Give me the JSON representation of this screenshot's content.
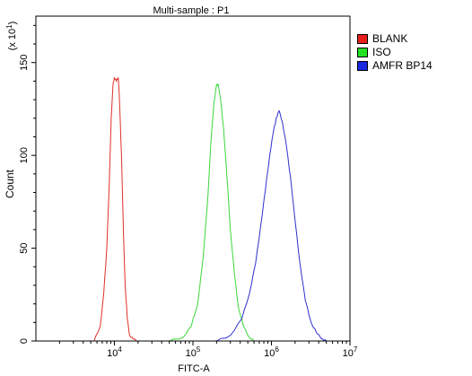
{
  "chart_data": {
    "type": "line",
    "title": "Multi-sample : P1",
    "xlabel": "FITC-A",
    "ylabel": "Count",
    "yscale_label": "(x 10",
    "yscale_exp": "1",
    "yscale_close": ")",
    "xscale": "log",
    "xlim": [
      1000,
      10000000
    ],
    "ylim": [
      0,
      175
    ],
    "x_ticks": [
      {
        "base": "10",
        "exp": "4",
        "value": 10000
      },
      {
        "base": "10",
        "exp": "5",
        "value": 100000
      },
      {
        "base": "10",
        "exp": "6",
        "value": 1000000
      },
      {
        "base": "10",
        "exp": "7",
        "value": 10000000
      }
    ],
    "y_ticks": [
      {
        "label": "0",
        "value": 0
      },
      {
        "label": "50",
        "value": 50
      },
      {
        "label": "100",
        "value": 100
      },
      {
        "label": "150",
        "value": 150
      }
    ],
    "legend_position": "outside-right-top",
    "series": [
      {
        "name": "BLANK",
        "color": "#e0302a",
        "legend_color": "#e8201c",
        "x": [
          5500,
          6600,
          7300,
          8000,
          8600,
          9100,
          9600,
          10000,
          10600,
          11200,
          11600,
          12300,
          13000,
          13700,
          14600,
          15600,
          17400,
          20000
        ],
        "y": [
          0,
          8,
          25,
          50,
          85,
          120,
          138,
          142,
          140,
          142,
          130,
          100,
          60,
          30,
          12,
          3,
          1,
          0
        ]
      },
      {
        "name": "ISO",
        "color": "#3ad83a",
        "legend_color": "#22e022",
        "x": [
          50000,
          75000,
          95000,
          115000,
          135000,
          155000,
          170000,
          185000,
          200000,
          210000,
          225000,
          245000,
          270000,
          300000,
          340000,
          380000,
          440000,
          520000,
          600000
        ],
        "y": [
          0,
          2,
          8,
          20,
          45,
          78,
          108,
          128,
          138,
          138,
          130,
          115,
          90,
          60,
          35,
          18,
          8,
          2,
          0
        ]
      },
      {
        "name": "AMFR BP14",
        "color": "#2f2fd0",
        "legend_color": "#1a28e0",
        "x": [
          200000,
          300000,
          420000,
          520000,
          630000,
          730000,
          840000,
          950000,
          1050000,
          1150000,
          1250000,
          1380000,
          1550000,
          1750000,
          2000000,
          2300000,
          2700000,
          3200000,
          3800000,
          4500000,
          5000000
        ],
        "y": [
          0,
          3,
          12,
          25,
          42,
          62,
          82,
          100,
          112,
          120,
          124,
          118,
          105,
          88,
          65,
          42,
          22,
          10,
          4,
          1,
          0
        ]
      }
    ]
  }
}
